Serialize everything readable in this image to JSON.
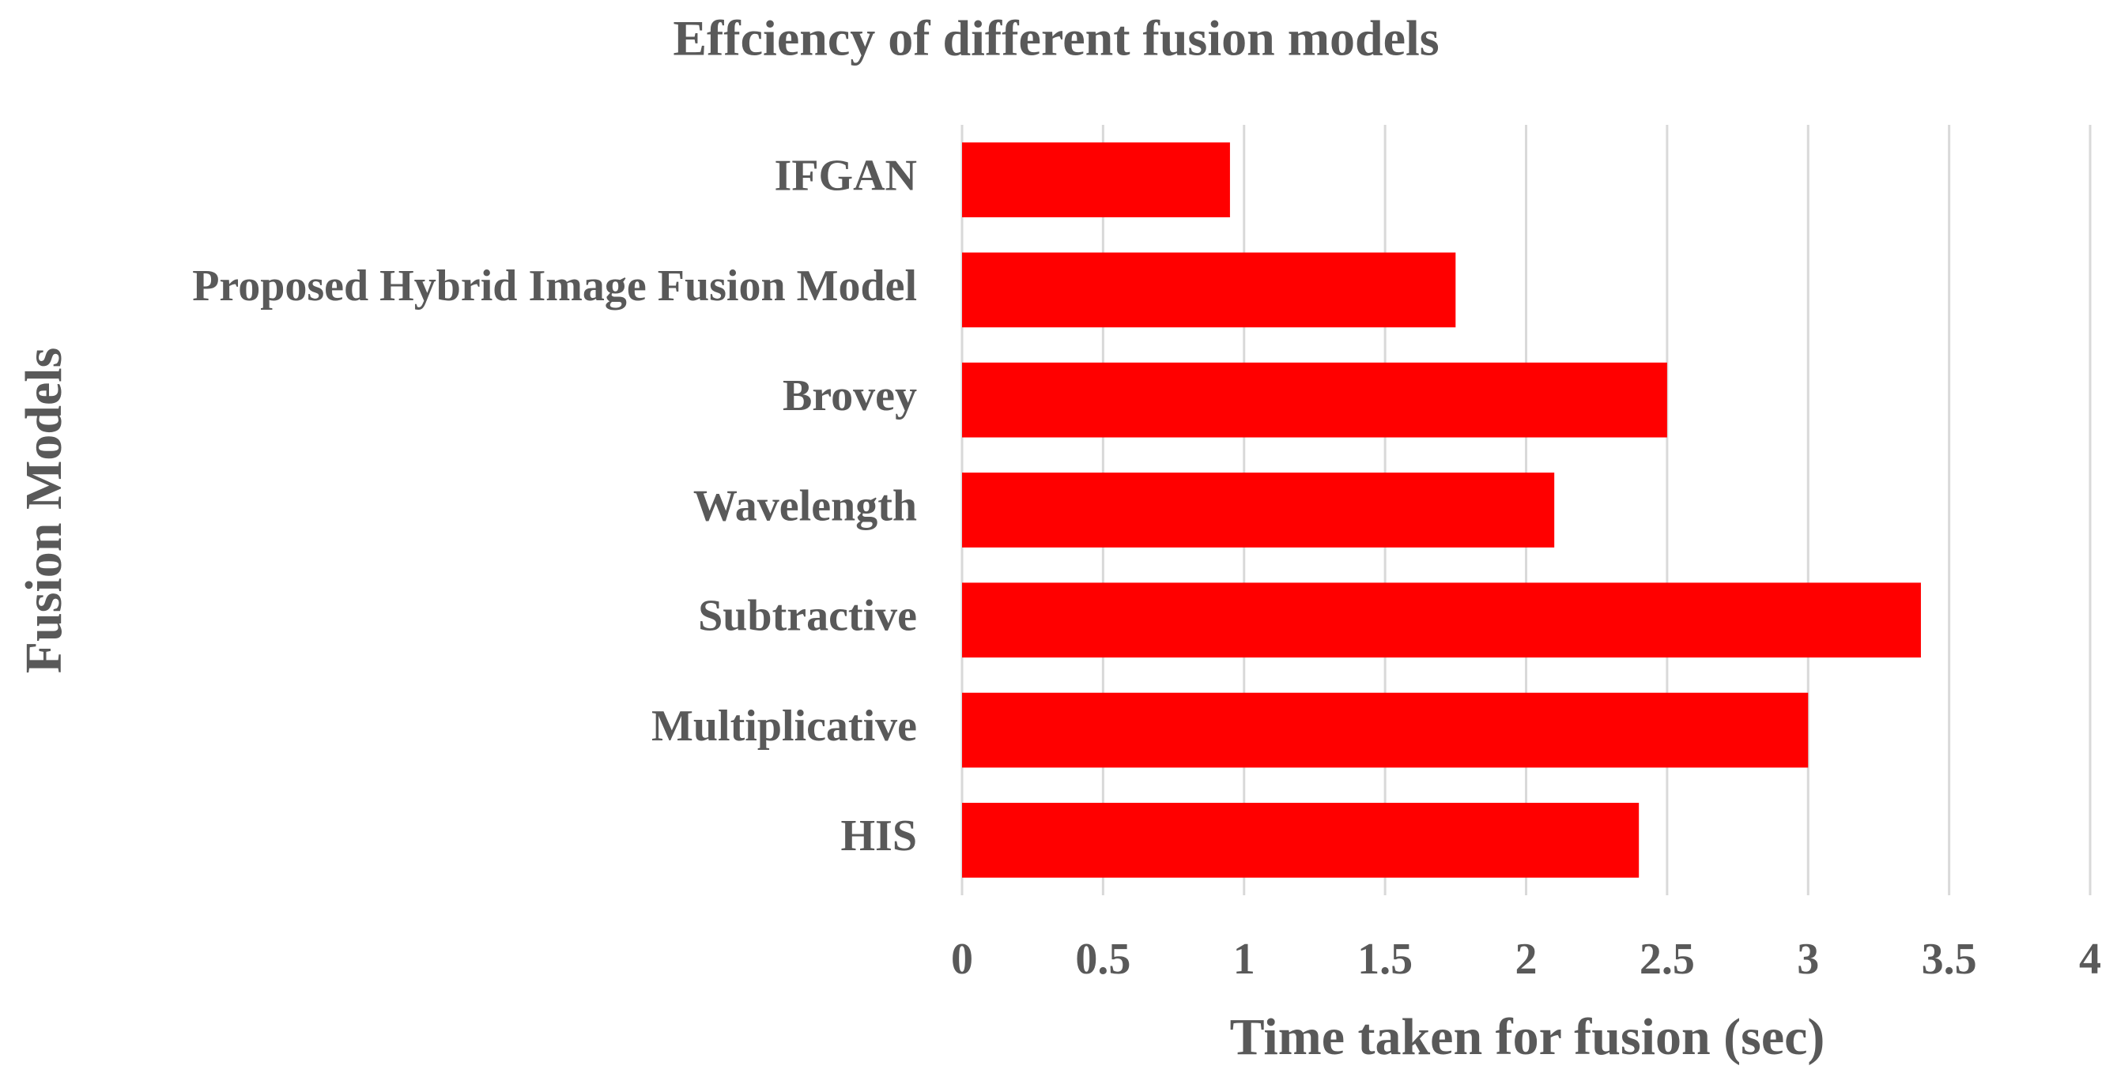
{
  "chart_data": {
    "type": "bar",
    "orientation": "horizontal",
    "title": "Effciency of different fusion models",
    "x_label": "Time taken for fusion (sec)",
    "y_label": "Fusion Models",
    "categories": [
      "IFGAN",
      "Proposed Hybrid Image Fusion Model",
      "Brovey",
      "Wavelength",
      "Subtractive",
      "Multiplicative",
      "HIS"
    ],
    "values": [
      0.95,
      1.75,
      2.5,
      2.1,
      3.4,
      3.0,
      2.4
    ],
    "color": "#ff0000",
    "xlim": [
      0,
      4
    ],
    "xticks": [
      0,
      0.5,
      1,
      1.5,
      2,
      2.5,
      3,
      3.5,
      4
    ],
    "grid": true
  }
}
